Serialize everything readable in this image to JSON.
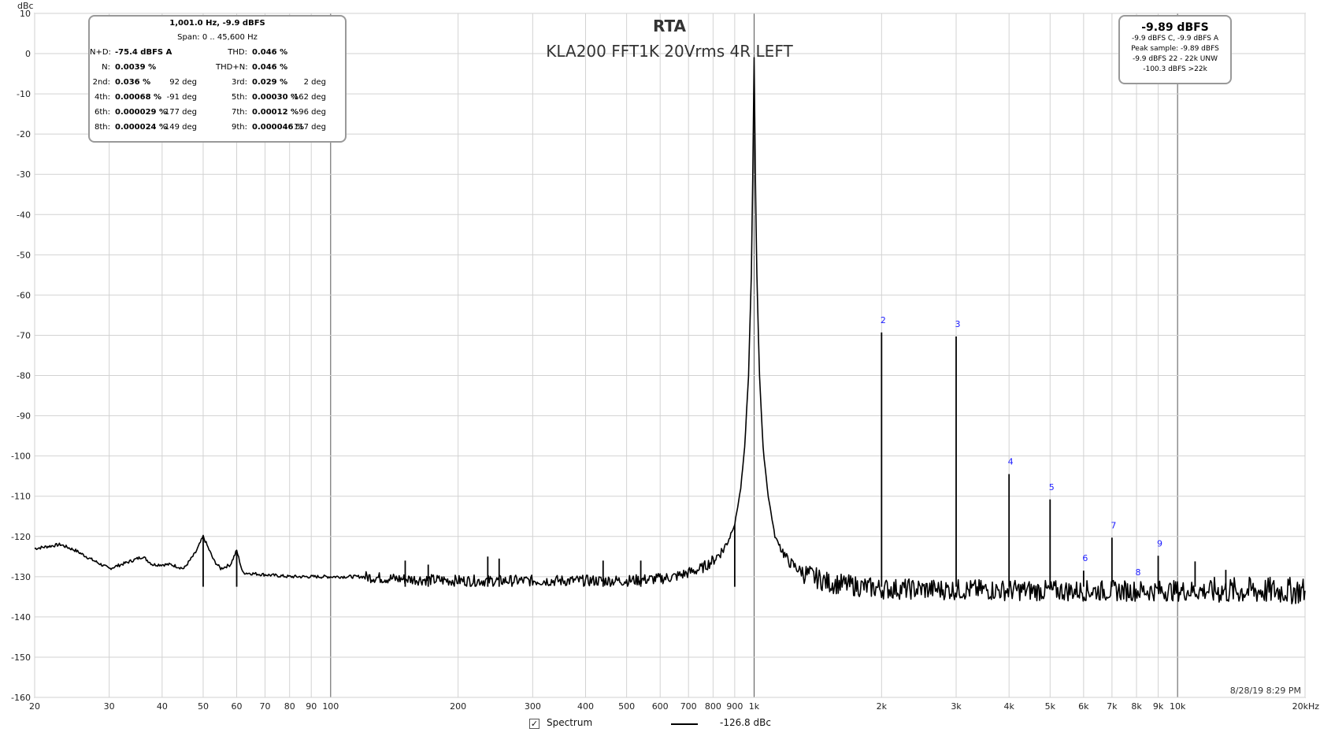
{
  "chart_data": {
    "type": "line",
    "title": "RTA",
    "subtitle": "KLA200 FFT1K 20Vrms 4R LEFT",
    "ylabel": "dBc",
    "xlabel": "",
    "x_scale": "log",
    "xlim": [
      20,
      20000
    ],
    "ylim": [
      -160,
      10
    ],
    "grid": true,
    "x_tick_labels": [
      {
        "f": 20,
        "label": "20"
      },
      {
        "f": 30,
        "label": "30"
      },
      {
        "f": 40,
        "label": "40"
      },
      {
        "f": 50,
        "label": "50"
      },
      {
        "f": 60,
        "label": "60"
      },
      {
        "f": 70,
        "label": "70"
      },
      {
        "f": 80,
        "label": "80"
      },
      {
        "f": 90,
        "label": "90"
      },
      {
        "f": 100,
        "label": "100"
      },
      {
        "f": 200,
        "label": "200"
      },
      {
        "f": 300,
        "label": "300"
      },
      {
        "f": 400,
        "label": "400"
      },
      {
        "f": 500,
        "label": "500"
      },
      {
        "f": 600,
        "label": "600"
      },
      {
        "f": 700,
        "label": "700"
      },
      {
        "f": 800,
        "label": "800"
      },
      {
        "f": 900,
        "label": "900"
      },
      {
        "f": 1000,
        "label": "1k"
      },
      {
        "f": 2000,
        "label": "2k"
      },
      {
        "f": 3000,
        "label": "3k"
      },
      {
        "f": 4000,
        "label": "4k"
      },
      {
        "f": 5000,
        "label": "5k"
      },
      {
        "f": 6000,
        "label": "6k"
      },
      {
        "f": 7000,
        "label": "7k"
      },
      {
        "f": 8000,
        "label": "8k"
      },
      {
        "f": 9000,
        "label": "9k"
      },
      {
        "f": 10000,
        "label": "10k"
      },
      {
        "f": 20000,
        "label": "20kHz"
      }
    ],
    "y_ticks": [
      10,
      0,
      -10,
      -20,
      -30,
      -40,
      -50,
      -60,
      -70,
      -80,
      -90,
      -100,
      -110,
      -120,
      -130,
      -140,
      -150,
      -160
    ],
    "series": [
      {
        "name": "Spectrum",
        "color": "#000000",
        "noise_floor": [
          [
            20,
            -123
          ],
          [
            23,
            -122
          ],
          [
            25,
            -123.5
          ],
          [
            27,
            -125.5
          ],
          [
            30,
            -128
          ],
          [
            33,
            -126.5
          ],
          [
            36,
            -125
          ],
          [
            38,
            -127
          ],
          [
            42,
            -127
          ],
          [
            45,
            -128
          ],
          [
            48,
            -124
          ],
          [
            50,
            -120
          ],
          [
            53,
            -126
          ],
          [
            55,
            -128
          ],
          [
            58,
            -127
          ],
          [
            60,
            -123.5
          ],
          [
            62,
            -129
          ],
          [
            70,
            -129.5
          ],
          [
            80,
            -130
          ],
          [
            90,
            -130
          ],
          [
            100,
            -130
          ],
          [
            120,
            -130
          ],
          [
            140,
            -130.5
          ],
          [
            200,
            -131
          ],
          [
            300,
            -131
          ],
          [
            400,
            -131
          ],
          [
            500,
            -131
          ],
          [
            600,
            -130.5
          ],
          [
            650,
            -130
          ],
          [
            700,
            -129
          ],
          [
            750,
            -128
          ],
          [
            800,
            -126
          ],
          [
            850,
            -123
          ],
          [
            900,
            -117
          ],
          [
            930,
            -108
          ],
          [
            950,
            -98
          ],
          [
            970,
            -80
          ],
          [
            985,
            -55
          ],
          [
            993,
            -30
          ],
          [
            1000,
            -1
          ],
          [
            1007,
            -30
          ],
          [
            1015,
            -55
          ],
          [
            1030,
            -80
          ],
          [
            1050,
            -98
          ],
          [
            1080,
            -110
          ],
          [
            1120,
            -120
          ],
          [
            1200,
            -126
          ],
          [
            1300,
            -129
          ],
          [
            1500,
            -131.5
          ],
          [
            1800,
            -132.5
          ],
          [
            2000,
            -133
          ],
          [
            5000,
            -133.5
          ],
          [
            10000,
            -133.5
          ],
          [
            20000,
            -133.5
          ]
        ],
        "spikes": [
          [
            50,
            -120
          ],
          [
            60,
            -123.5
          ],
          [
            150,
            -126
          ],
          [
            170,
            -127
          ],
          [
            235,
            -125
          ],
          [
            250,
            -125.5
          ],
          [
            440,
            -126
          ],
          [
            540,
            -126
          ],
          [
            900,
            -117
          ],
          [
            2000,
            -69.3
          ],
          [
            3000,
            -70.3
          ],
          [
            4000,
            -104.5
          ],
          [
            5000,
            -110.8
          ],
          [
            6000,
            -128.5
          ],
          [
            7000,
            -120.3
          ],
          [
            9000,
            -124.8
          ],
          [
            11000,
            -126.2
          ],
          [
            13000,
            -128.3
          ]
        ]
      }
    ],
    "harmonic_labels": [
      {
        "label": "2",
        "f": 2000,
        "y": -69.3
      },
      {
        "label": "3",
        "f": 3000,
        "y": -70.3
      },
      {
        "label": "4",
        "f": 4000,
        "y": -104.5
      },
      {
        "label": "5",
        "f": 5000,
        "y": -110.8
      },
      {
        "label": "6",
        "f": 6000,
        "y": -128.5
      },
      {
        "label": "7",
        "f": 7000,
        "y": -120.3
      },
      {
        "label": "8",
        "f": 8000,
        "y": -132
      },
      {
        "label": "9",
        "f": 9000,
        "y": -124.8
      }
    ],
    "timestamp": "8/28/19 8:29 PM"
  },
  "stats": {
    "header": "1,001.0 Hz, -9.9 dBFS",
    "span": "Span: 0 .. 45,600 Hz",
    "rows": [
      [
        {
          "l": "N+D:",
          "v": "-75.4 dBFS A"
        },
        {
          "l": "THD:",
          "v": "0.046 %"
        }
      ],
      [
        {
          "l": "N:",
          "v": "0.0039 %"
        },
        {
          "l": "THD+N:",
          "v": "0.046 %"
        }
      ],
      [
        {
          "l": "2nd:",
          "v": "0.036 %",
          "d": "92 deg"
        },
        {
          "l": "3rd:",
          "v": "0.029 %",
          "d": "2 deg"
        }
      ],
      [
        {
          "l": "4th:",
          "v": "0.00068 %",
          "d": "-91 deg"
        },
        {
          "l": "5th:",
          "v": "0.00030 %",
          "d": "-162 deg"
        }
      ],
      [
        {
          "l": "6th:",
          "v": "0.000029 %",
          "d": "177 deg"
        },
        {
          "l": "7th:",
          "v": "0.00012 %",
          "d": "96 deg"
        }
      ],
      [
        {
          "l": "8th:",
          "v": "0.000024 %",
          "d": "149 deg"
        },
        {
          "l": "9th:",
          "v": "0.000046 %",
          "d": "117 deg"
        }
      ]
    ]
  },
  "level": {
    "main": "-9.89 dBFS",
    "lines": [
      "-9.9 dBFS C, -9.9 dBFS A",
      "Peak sample: -9.89 dBFS",
      "-9.9 dBFS 22 - 22k UNW",
      "-100.3 dBFS >22k"
    ]
  },
  "legend": {
    "checkbox_mark": "✓",
    "series_label": "Spectrum",
    "readout": "-126.8 dBc"
  }
}
